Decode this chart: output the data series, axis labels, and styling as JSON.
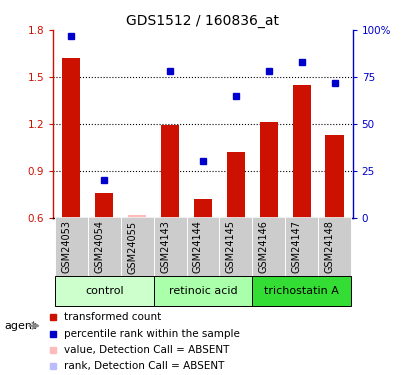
{
  "title": "GDS1512 / 160836_at",
  "samples": [
    "GSM24053",
    "GSM24054",
    "GSM24055",
    "GSM24143",
    "GSM24144",
    "GSM24145",
    "GSM24146",
    "GSM24147",
    "GSM24148"
  ],
  "groups": [
    {
      "name": "control",
      "indices": [
        0,
        1,
        2
      ]
    },
    {
      "name": "retinoic acid",
      "indices": [
        3,
        4,
        5
      ]
    },
    {
      "name": "trichostatin A",
      "indices": [
        6,
        7,
        8
      ]
    }
  ],
  "group_colors": [
    "#ccffcc",
    "#ccffcc",
    "#44ee44"
  ],
  "bar_values": [
    1.62,
    0.76,
    0.615,
    1.19,
    0.72,
    1.02,
    1.21,
    1.45,
    1.13
  ],
  "bar_absent": [
    false,
    false,
    true,
    false,
    false,
    false,
    false,
    false,
    false
  ],
  "rank_values": [
    97,
    20,
    null,
    78,
    30,
    65,
    78,
    83,
    72
  ],
  "rank_absent": [
    false,
    false,
    true,
    false,
    false,
    false,
    false,
    false,
    false
  ],
  "ylim_left": [
    0.6,
    1.8
  ],
  "ylim_right": [
    0,
    100
  ],
  "yticks_left": [
    0.6,
    0.9,
    1.2,
    1.5,
    1.8
  ],
  "ytick_labels_left": [
    "0.6",
    "0.9",
    "1.2",
    "1.5",
    "1.8"
  ],
  "yticks_right": [
    0,
    25,
    50,
    75,
    100
  ],
  "ytick_labels_right": [
    "0",
    "25",
    "50",
    "75",
    "100%"
  ],
  "bar_color": "#cc1100",
  "bar_absent_color": "#ffbbbb",
  "rank_color": "#0000cc",
  "rank_absent_color": "#bbbbff",
  "legend_items": [
    {
      "label": "transformed count",
      "color": "#cc1100"
    },
    {
      "label": "percentile rank within the sample",
      "color": "#0000cc"
    },
    {
      "label": "value, Detection Call = ABSENT",
      "color": "#ffbbbb"
    },
    {
      "label": "rank, Detection Call = ABSENT",
      "color": "#bbbbff"
    }
  ],
  "agent_label": "agent",
  "group_bg_colors": [
    "#ccffcc",
    "#aaffaa",
    "#44dd44"
  ],
  "sample_bg_color": "#cccccc"
}
